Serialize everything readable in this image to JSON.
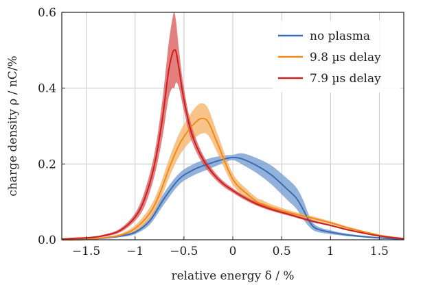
{
  "chart_data": {
    "type": "line",
    "xlabel": "relative energy δ / %",
    "ylabel": "charge density ρ / nC/%",
    "xlim": [
      -1.75,
      1.75
    ],
    "ylim": [
      0,
      0.6
    ],
    "xticks": [
      {
        "value": -1.5,
        "label": "−1.5"
      },
      {
        "value": -1,
        "label": "−1"
      },
      {
        "value": -0.5,
        "label": "−0.5"
      },
      {
        "value": 0,
        "label": "0"
      },
      {
        "value": 0.5,
        "label": "0.5"
      },
      {
        "value": 1,
        "label": "1"
      },
      {
        "value": 1.5,
        "label": "1.5"
      }
    ],
    "yticks": [
      {
        "value": 0,
        "label": "0.0"
      },
      {
        "value": 0.2,
        "label": "0.2"
      },
      {
        "value": 0.4,
        "label": "0.4"
      },
      {
        "value": 0.6,
        "label": "0.6"
      }
    ],
    "grid": true,
    "legend_position": "top-right",
    "series": [
      {
        "name": "no plasma",
        "color": "#3a6cb0",
        "band_color": "#6f98cf",
        "x": [
          -1.75,
          -1.6,
          -1.45,
          -1.3,
          -1.15,
          -1.0,
          -0.85,
          -0.7,
          -0.55,
          -0.4,
          -0.25,
          -0.1,
          0.0,
          0.1,
          0.25,
          0.4,
          0.55,
          0.65,
          0.72,
          0.78,
          0.85,
          1.0,
          1.2,
          1.5,
          1.75
        ],
        "y": [
          0.0,
          0.0,
          0.002,
          0.005,
          0.01,
          0.02,
          0.05,
          0.11,
          0.16,
          0.185,
          0.2,
          0.212,
          0.217,
          0.213,
          0.195,
          0.17,
          0.135,
          0.11,
          0.08,
          0.05,
          0.03,
          0.02,
          0.012,
          0.005,
          0.002
        ],
        "band": [
          0.0,
          0.0,
          0.001,
          0.002,
          0.003,
          0.005,
          0.01,
          0.015,
          0.015,
          0.015,
          0.014,
          0.01,
          0.007,
          0.015,
          0.02,
          0.025,
          0.028,
          0.028,
          0.025,
          0.015,
          0.008,
          0.005,
          0.003,
          0.002,
          0.001
        ]
      },
      {
        "name": "9.8 µs delay",
        "color": "#f08a1c",
        "band_color": "#f6b063",
        "x": [
          -1.75,
          -1.6,
          -1.45,
          -1.3,
          -1.15,
          -1.0,
          -0.85,
          -0.75,
          -0.65,
          -0.55,
          -0.45,
          -0.38,
          -0.32,
          -0.25,
          -0.15,
          0.0,
          0.15,
          0.25,
          0.3,
          0.4,
          0.6,
          0.8,
          1.0,
          1.2,
          1.5,
          1.75
        ],
        "y": [
          0.0,
          0.0,
          0.002,
          0.006,
          0.012,
          0.03,
          0.07,
          0.12,
          0.19,
          0.25,
          0.29,
          0.31,
          0.32,
          0.31,
          0.25,
          0.16,
          0.12,
          0.1,
          0.095,
          0.085,
          0.07,
          0.058,
          0.045,
          0.03,
          0.012,
          0.003
        ],
        "band": [
          0.0,
          0.0,
          0.001,
          0.002,
          0.004,
          0.008,
          0.015,
          0.02,
          0.025,
          0.03,
          0.035,
          0.04,
          0.04,
          0.035,
          0.025,
          0.015,
          0.012,
          0.01,
          0.01,
          0.008,
          0.006,
          0.005,
          0.004,
          0.003,
          0.002,
          0.001
        ]
      },
      {
        "name": "7.9 µs delay",
        "color": "#cc1f1f",
        "band_color": "#d95454",
        "x": [
          -1.75,
          -1.6,
          -1.45,
          -1.3,
          -1.15,
          -1.0,
          -0.9,
          -0.8,
          -0.72,
          -0.66,
          -0.62,
          -0.6,
          -0.58,
          -0.55,
          -0.5,
          -0.42,
          -0.3,
          -0.15,
          0.0,
          0.2,
          0.4,
          0.6,
          0.8,
          1.0,
          1.2,
          1.5,
          1.75
        ],
        "y": [
          0.002,
          0.004,
          0.006,
          0.012,
          0.025,
          0.06,
          0.11,
          0.2,
          0.32,
          0.44,
          0.49,
          0.5,
          0.495,
          0.45,
          0.37,
          0.28,
          0.21,
          0.16,
          0.13,
          0.1,
          0.08,
          0.065,
          0.05,
          0.038,
          0.025,
          0.01,
          0.003
        ],
        "band": [
          0.001,
          0.002,
          0.002,
          0.003,
          0.005,
          0.01,
          0.02,
          0.03,
          0.05,
          0.07,
          0.09,
          0.1,
          0.08,
          0.05,
          0.03,
          0.02,
          0.012,
          0.008,
          0.006,
          0.005,
          0.004,
          0.003,
          0.003,
          0.002,
          0.002,
          0.001,
          0.001
        ]
      }
    ]
  }
}
